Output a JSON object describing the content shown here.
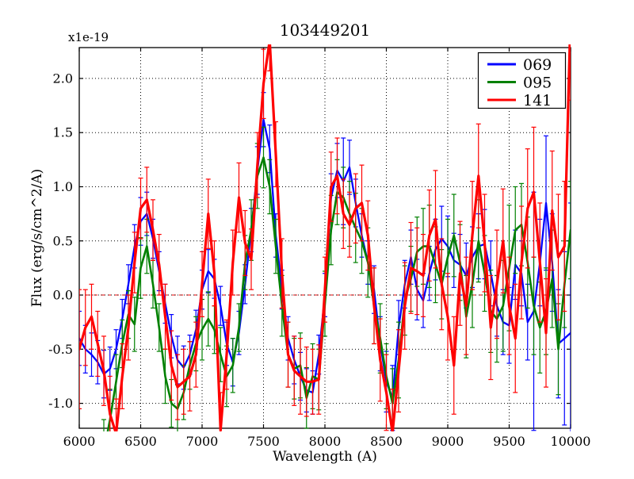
{
  "chart_data": {
    "type": "line",
    "title": "103449201",
    "xlabel": "Wavelength (A)",
    "ylabel": "Flux (erg/s/cm^2/A)",
    "offset_label": "x1e-19",
    "xlim": [
      6000,
      10000
    ],
    "ylim": [
      -1.23,
      2.285
    ],
    "x_ticks": [
      6000,
      6500,
      7000,
      7500,
      8000,
      8500,
      9000,
      9500,
      10000
    ],
    "x_tick_labels": [
      "6000",
      "6500",
      "7000",
      "7500",
      "8000",
      "8500",
      "9000",
      "9500",
      "10000"
    ],
    "y_ticks": [
      -1.0,
      -0.5,
      0.0,
      0.5,
      1.0,
      1.5,
      2.0
    ],
    "y_tick_labels": [
      "-1.0",
      "-0.5",
      "0.0",
      "0.5",
      "1.0",
      "1.5",
      "2.0"
    ],
    "grid": true,
    "grid_style": "dotted-black",
    "zero_line": true,
    "zero_line_color": "#ff0000",
    "legend_position": "upper right",
    "axis_color": "#000000",
    "background_color": "#ffffff",
    "x": [
      6000,
      6050,
      6100,
      6150,
      6200,
      6250,
      6300,
      6350,
      6400,
      6450,
      6500,
      6550,
      6600,
      6650,
      6700,
      6750,
      6800,
      6850,
      6900,
      6950,
      7000,
      7050,
      7100,
      7150,
      7200,
      7250,
      7300,
      7350,
      7400,
      7450,
      7500,
      7550,
      7600,
      7650,
      7700,
      7750,
      7800,
      7850,
      7900,
      7950,
      8000,
      8050,
      8100,
      8150,
      8200,
      8250,
      8300,
      8350,
      8400,
      8450,
      8500,
      8550,
      8600,
      8650,
      8700,
      8750,
      8800,
      8850,
      8900,
      8950,
      9000,
      9050,
      9100,
      9150,
      9200,
      9250,
      9300,
      9350,
      9400,
      9450,
      9500,
      9550,
      9600,
      9650,
      9700,
      9750,
      9800,
      9850,
      9900,
      9950,
      10000
    ],
    "series": [
      {
        "name": "069",
        "color": "#0000ff",
        "values": [
          -0.4,
          -0.5,
          -0.55,
          -0.62,
          -0.73,
          -0.68,
          -0.5,
          -0.22,
          0.1,
          0.45,
          0.68,
          0.75,
          0.52,
          0.22,
          -0.08,
          -0.38,
          -0.6,
          -0.67,
          -0.55,
          -0.32,
          0.05,
          0.22,
          0.15,
          -0.1,
          -0.45,
          -0.62,
          -0.35,
          0.1,
          0.6,
          1.15,
          1.62,
          1.35,
          0.55,
          0.05,
          -0.4,
          -0.6,
          -0.75,
          -0.88,
          -0.9,
          -0.55,
          0.0,
          0.9,
          1.15,
          1.05,
          1.18,
          0.85,
          0.55,
          0.3,
          0.05,
          -0.45,
          -0.8,
          -0.95,
          -0.3,
          0.1,
          0.35,
          0.05,
          -0.05,
          0.2,
          0.42,
          0.52,
          0.45,
          0.32,
          0.28,
          0.18,
          0.35,
          0.45,
          0.47,
          0.2,
          -0.1,
          -0.25,
          -0.28,
          0.28,
          0.2,
          -0.25,
          -0.15,
          0.3,
          0.85,
          0.3,
          -0.45,
          -0.4,
          -0.35
        ],
        "errors": [
          0.25,
          0.22,
          0.2,
          0.2,
          0.22,
          0.2,
          0.18,
          0.18,
          0.18,
          0.2,
          0.22,
          0.2,
          0.18,
          0.18,
          0.18,
          0.2,
          0.22,
          0.2,
          0.18,
          0.18,
          0.18,
          0.2,
          0.18,
          0.18,
          0.2,
          0.22,
          0.2,
          0.18,
          0.2,
          0.22,
          0.25,
          0.22,
          0.2,
          0.18,
          0.2,
          0.22,
          0.22,
          0.2,
          0.2,
          0.18,
          0.2,
          0.22,
          0.25,
          0.4,
          0.25,
          0.22,
          0.2,
          0.2,
          0.22,
          0.25,
          0.28,
          0.3,
          0.25,
          0.22,
          0.25,
          0.28,
          0.25,
          0.25,
          0.28,
          0.3,
          0.28,
          0.25,
          0.28,
          0.3,
          0.28,
          0.3,
          0.32,
          0.3,
          0.28,
          0.3,
          0.35,
          0.32,
          0.3,
          0.35,
          1.1,
          0.4,
          0.62,
          0.45,
          0.5,
          0.8,
          1.2
        ]
      },
      {
        "name": "095",
        "color": "#008000",
        "values": [
          null,
          null,
          null,
          null,
          -1.45,
          -1.15,
          -0.8,
          -0.45,
          -0.18,
          -0.27,
          0.25,
          0.45,
          0.1,
          -0.3,
          -0.75,
          -1.0,
          -1.05,
          -0.9,
          -0.65,
          -0.45,
          -0.32,
          -0.22,
          -0.32,
          -0.55,
          -0.75,
          -0.65,
          -0.3,
          0.3,
          0.6,
          1.1,
          1.27,
          1.0,
          0.45,
          -0.1,
          -0.55,
          -0.68,
          -0.65,
          -0.95,
          -0.75,
          -0.78,
          -0.08,
          0.6,
          0.95,
          0.9,
          0.75,
          0.62,
          0.5,
          0.3,
          -0.1,
          -0.4,
          -0.75,
          -1.0,
          -0.6,
          -0.05,
          0.15,
          0.4,
          0.45,
          0.45,
          0.28,
          0.1,
          0.35,
          0.55,
          0.3,
          -0.2,
          0.1,
          0.5,
          0.2,
          -0.15,
          -0.22,
          -0.1,
          0.25,
          0.6,
          0.65,
          0.3,
          -0.1,
          -0.3,
          -0.15,
          0.15,
          -0.5,
          0.1,
          0.6
        ],
        "errors": [
          null,
          null,
          null,
          null,
          0.3,
          0.28,
          0.25,
          0.22,
          0.22,
          0.25,
          0.28,
          0.25,
          0.22,
          0.22,
          0.25,
          0.22,
          0.22,
          0.25,
          0.22,
          0.25,
          0.28,
          0.25,
          0.22,
          0.25,
          0.28,
          0.25,
          0.22,
          0.25,
          0.28,
          0.3,
          0.28,
          0.25,
          0.25,
          0.28,
          0.3,
          0.28,
          0.3,
          0.28,
          0.3,
          0.28,
          0.3,
          0.32,
          0.3,
          0.28,
          0.3,
          0.32,
          0.3,
          0.32,
          0.35,
          0.32,
          0.3,
          0.32,
          0.35,
          0.32,
          0.3,
          0.32,
          0.35,
          0.38,
          0.35,
          0.32,
          0.35,
          0.38,
          0.35,
          0.38,
          0.4,
          0.38,
          0.35,
          0.38,
          0.4,
          0.42,
          0.58,
          0.4,
          0.38,
          0.42,
          0.45,
          0.42,
          0.4,
          0.45,
          0.42,
          0.4,
          0.45
        ]
      },
      {
        "name": "141",
        "color": "#ff0000",
        "values": [
          -0.5,
          -0.3,
          -0.2,
          -0.45,
          -0.7,
          -1.1,
          -1.28,
          -0.75,
          -0.3,
          0.3,
          0.8,
          0.88,
          0.6,
          0.28,
          -0.2,
          -0.65,
          -0.85,
          -0.8,
          -0.75,
          -0.55,
          0.1,
          0.75,
          0.2,
          -1.25,
          -0.55,
          0.3,
          0.9,
          0.48,
          0.33,
          1.2,
          1.95,
          2.35,
          1.3,
          0.2,
          -0.55,
          -0.7,
          -0.75,
          -0.8,
          -0.8,
          -0.78,
          0.05,
          1.0,
          1.1,
          0.75,
          0.65,
          0.8,
          0.85,
          0.55,
          -0.1,
          -0.6,
          -0.9,
          -1.27,
          -0.7,
          -0.1,
          0.25,
          0.22,
          0.18,
          0.55,
          0.7,
          0.1,
          -0.2,
          -0.65,
          0.2,
          -0.1,
          0.55,
          1.1,
          0.48,
          -0.3,
          0.1,
          0.5,
          -0.1,
          -0.4,
          0.3,
          0.8,
          0.95,
          0.3,
          -0.35,
          0.78,
          0.35,
          0.45,
          2.6
        ],
        "errors": [
          0.55,
          0.35,
          0.3,
          0.3,
          0.32,
          0.35,
          0.32,
          0.3,
          0.3,
          0.28,
          0.28,
          0.3,
          0.28,
          0.28,
          0.3,
          0.32,
          0.3,
          0.3,
          0.32,
          0.3,
          0.3,
          0.32,
          0.3,
          0.35,
          0.32,
          0.3,
          0.32,
          0.3,
          0.28,
          0.3,
          0.32,
          0.28,
          0.3,
          0.32,
          0.3,
          0.32,
          0.35,
          0.32,
          0.3,
          0.32,
          0.3,
          0.32,
          0.35,
          0.32,
          0.3,
          0.32,
          0.35,
          0.32,
          0.35,
          0.38,
          0.35,
          0.4,
          0.38,
          0.4,
          0.42,
          0.4,
          0.38,
          0.42,
          0.45,
          0.42,
          0.4,
          0.45,
          0.48,
          0.45,
          0.5,
          0.48,
          0.45,
          0.48,
          0.5,
          0.48,
          0.45,
          0.5,
          0.52,
          0.55,
          0.6,
          0.55,
          0.5,
          0.55,
          0.58,
          0.6,
          0.8
        ]
      }
    ]
  }
}
